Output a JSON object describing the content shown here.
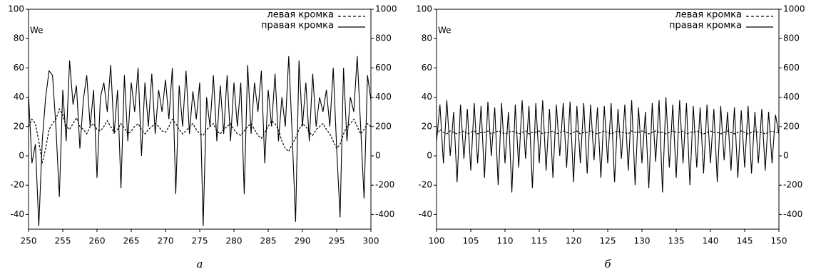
{
  "chart_data": [
    {
      "type": "line",
      "caption": "а",
      "ylabel": "We",
      "legend": "upper right",
      "x": [
        250,
        250.5,
        251,
        251.5,
        252,
        252.5,
        253,
        253.5,
        254,
        254.5,
        255,
        255.5,
        256,
        256.5,
        257,
        257.5,
        258,
        258.5,
        259,
        259.5,
        260,
        260.5,
        261,
        261.5,
        262,
        262.5,
        263,
        263.5,
        264,
        264.5,
        265,
        265.5,
        266,
        266.5,
        267,
        267.5,
        268,
        268.5,
        269,
        269.5,
        270,
        270.5,
        271,
        271.5,
        272,
        272.5,
        273,
        273.5,
        274,
        274.5,
        275,
        275.5,
        276,
        276.5,
        277,
        277.5,
        278,
        278.5,
        279,
        279.5,
        280,
        280.5,
        281,
        281.5,
        282,
        282.5,
        283,
        283.5,
        284,
        284.5,
        285,
        285.5,
        286,
        286.5,
        287,
        287.5,
        288,
        288.5,
        289,
        289.5,
        290,
        290.5,
        291,
        291.5,
        292,
        292.5,
        293,
        293.5,
        294,
        294.5,
        295,
        295.5,
        296,
        296.5,
        297,
        297.5,
        298,
        298.5,
        299,
        299.5,
        300
      ],
      "series": [
        {
          "name": "левая кромка",
          "color": "#000000",
          "dash": true,
          "values": [
            20,
            25,
            22,
            10,
            -5,
            5,
            18,
            22,
            25,
            32,
            28,
            20,
            18,
            22,
            26,
            20,
            18,
            15,
            20,
            22,
            18,
            17,
            20,
            24,
            20,
            16,
            18,
            22,
            19,
            15,
            17,
            20,
            22,
            18,
            15,
            18,
            20,
            22,
            20,
            17,
            16,
            20,
            25,
            22,
            18,
            15,
            17,
            20,
            22,
            18,
            15,
            14,
            18,
            20,
            22,
            17,
            15,
            18,
            20,
            22,
            18,
            15,
            14,
            17,
            20,
            22,
            18,
            14,
            12,
            16,
            20,
            24,
            22,
            18,
            10,
            5,
            3,
            8,
            12,
            18,
            22,
            20,
            16,
            14,
            18,
            20,
            22,
            18,
            15,
            10,
            5,
            8,
            15,
            20,
            22,
            25,
            20,
            15,
            18,
            22,
            20
          ]
        },
        {
          "name": "правая кромка",
          "color": "#000000",
          "dash": false,
          "values": [
            42,
            -5,
            8,
            -48,
            10,
            40,
            58,
            55,
            20,
            -28,
            45,
            10,
            65,
            35,
            48,
            5,
            38,
            55,
            20,
            45,
            -15,
            40,
            50,
            30,
            62,
            15,
            45,
            -22,
            55,
            10,
            50,
            30,
            60,
            0,
            50,
            20,
            56,
            15,
            45,
            30,
            52,
            25,
            60,
            -26,
            48,
            20,
            58,
            15,
            44,
            25,
            50,
            -48,
            40,
            20,
            55,
            10,
            48,
            15,
            55,
            10,
            50,
            20,
            50,
            -26,
            62,
            15,
            50,
            30,
            58,
            -5,
            45,
            20,
            56,
            10,
            40,
            20,
            68,
            15,
            -45,
            65,
            20,
            50,
            10,
            56,
            20,
            40,
            30,
            45,
            20,
            60,
            5,
            -42,
            60,
            10,
            40,
            30,
            68,
            20,
            -29,
            55,
            38
          ]
        }
      ],
      "xlim": [
        250,
        300
      ],
      "xticks": [
        250,
        255,
        260,
        265,
        270,
        275,
        280,
        285,
        290,
        295,
        300
      ],
      "ylim": [
        -50,
        100
      ],
      "yticks": [
        -40,
        -20,
        0,
        20,
        40,
        60,
        80,
        100
      ],
      "y2lim": [
        -500,
        1000
      ],
      "y2ticks": [
        -400,
        -200,
        0,
        200,
        400,
        600,
        800,
        1000
      ]
    },
    {
      "type": "line",
      "caption": "б",
      "ylabel": "We",
      "legend": "upper right",
      "x": [
        100,
        100.5,
        101,
        101.5,
        102,
        102.5,
        103,
        103.5,
        104,
        104.5,
        105,
        105.5,
        106,
        106.5,
        107,
        107.5,
        108,
        108.5,
        109,
        109.5,
        110,
        110.5,
        111,
        111.5,
        112,
        112.5,
        113,
        113.5,
        114,
        114.5,
        115,
        115.5,
        116,
        116.5,
        117,
        117.5,
        118,
        118.5,
        119,
        119.5,
        120,
        120.5,
        121,
        121.5,
        122,
        122.5,
        123,
        123.5,
        124,
        124.5,
        125,
        125.5,
        126,
        126.5,
        127,
        127.5,
        128,
        128.5,
        129,
        129.5,
        130,
        130.5,
        131,
        131.5,
        132,
        132.5,
        133,
        133.5,
        134,
        134.5,
        135,
        135.5,
        136,
        136.5,
        137,
        137.5,
        138,
        138.5,
        139,
        139.5,
        140,
        140.5,
        141,
        141.5,
        142,
        142.5,
        143,
        143.5,
        144,
        144.5,
        145,
        145.5,
        146,
        146.5,
        147,
        147.5,
        148,
        148.5,
        149,
        149.5,
        150
      ],
      "series": [
        {
          "name": "левая кромка",
          "color": "#000000",
          "dash": true,
          "values": [
            14,
            18,
            16,
            15,
            17,
            16,
            15,
            16,
            17,
            15,
            16,
            17,
            15,
            16,
            16,
            17,
            15,
            16,
            17,
            16,
            15,
            16,
            17,
            16,
            15,
            16,
            17,
            15,
            16,
            16,
            17,
            15,
            16,
            16,
            17,
            15,
            16,
            17,
            16,
            15,
            16,
            17,
            15,
            16,
            16,
            17,
            16,
            15,
            16,
            17,
            16,
            15,
            16,
            17,
            16,
            16,
            15,
            17,
            16,
            16,
            17,
            16,
            15,
            16,
            17,
            16,
            16,
            15,
            16,
            17,
            16,
            16,
            17,
            15,
            16,
            16,
            17,
            16,
            15,
            16,
            17,
            16,
            16,
            15,
            16,
            17,
            16,
            15,
            16,
            17,
            16,
            15,
            16,
            17,
            16,
            16,
            15,
            16,
            17,
            16,
            16
          ]
        },
        {
          "name": "правая кромка",
          "color": "#000000",
          "dash": false,
          "values": [
            10,
            35,
            -5,
            38,
            0,
            30,
            -18,
            35,
            -2,
            32,
            -10,
            36,
            -5,
            34,
            -15,
            37,
            0,
            33,
            -20,
            36,
            -5,
            30,
            -25,
            35,
            -8,
            38,
            -2,
            34,
            -22,
            36,
            -5,
            38,
            -10,
            32,
            -15,
            35,
            0,
            36,
            -8,
            37,
            -18,
            34,
            -5,
            36,
            -12,
            35,
            -3,
            33,
            -15,
            34,
            -5,
            36,
            -18,
            32,
            -2,
            35,
            -10,
            38,
            -20,
            33,
            -5,
            30,
            -22,
            36,
            -4,
            38,
            -25,
            40,
            -8,
            35,
            -15,
            38,
            -5,
            36,
            -20,
            34,
            -8,
            33,
            -12,
            35,
            -5,
            32,
            -18,
            34,
            -3,
            30,
            -10,
            33,
            -15,
            31,
            -8,
            34,
            -12,
            30,
            -5,
            32,
            -10,
            30,
            -5,
            28,
            15
          ]
        }
      ],
      "xlim": [
        100,
        150
      ],
      "xticks": [
        100,
        105,
        110,
        115,
        120,
        125,
        130,
        135,
        140,
        145,
        150
      ],
      "ylim": [
        -50,
        100
      ],
      "yticks": [
        -40,
        -20,
        0,
        20,
        40,
        60,
        80,
        100
      ],
      "y2lim": [
        -500,
        1000
      ],
      "y2ticks": [
        -400,
        -200,
        0,
        200,
        400,
        600,
        800,
        1000
      ]
    }
  ]
}
